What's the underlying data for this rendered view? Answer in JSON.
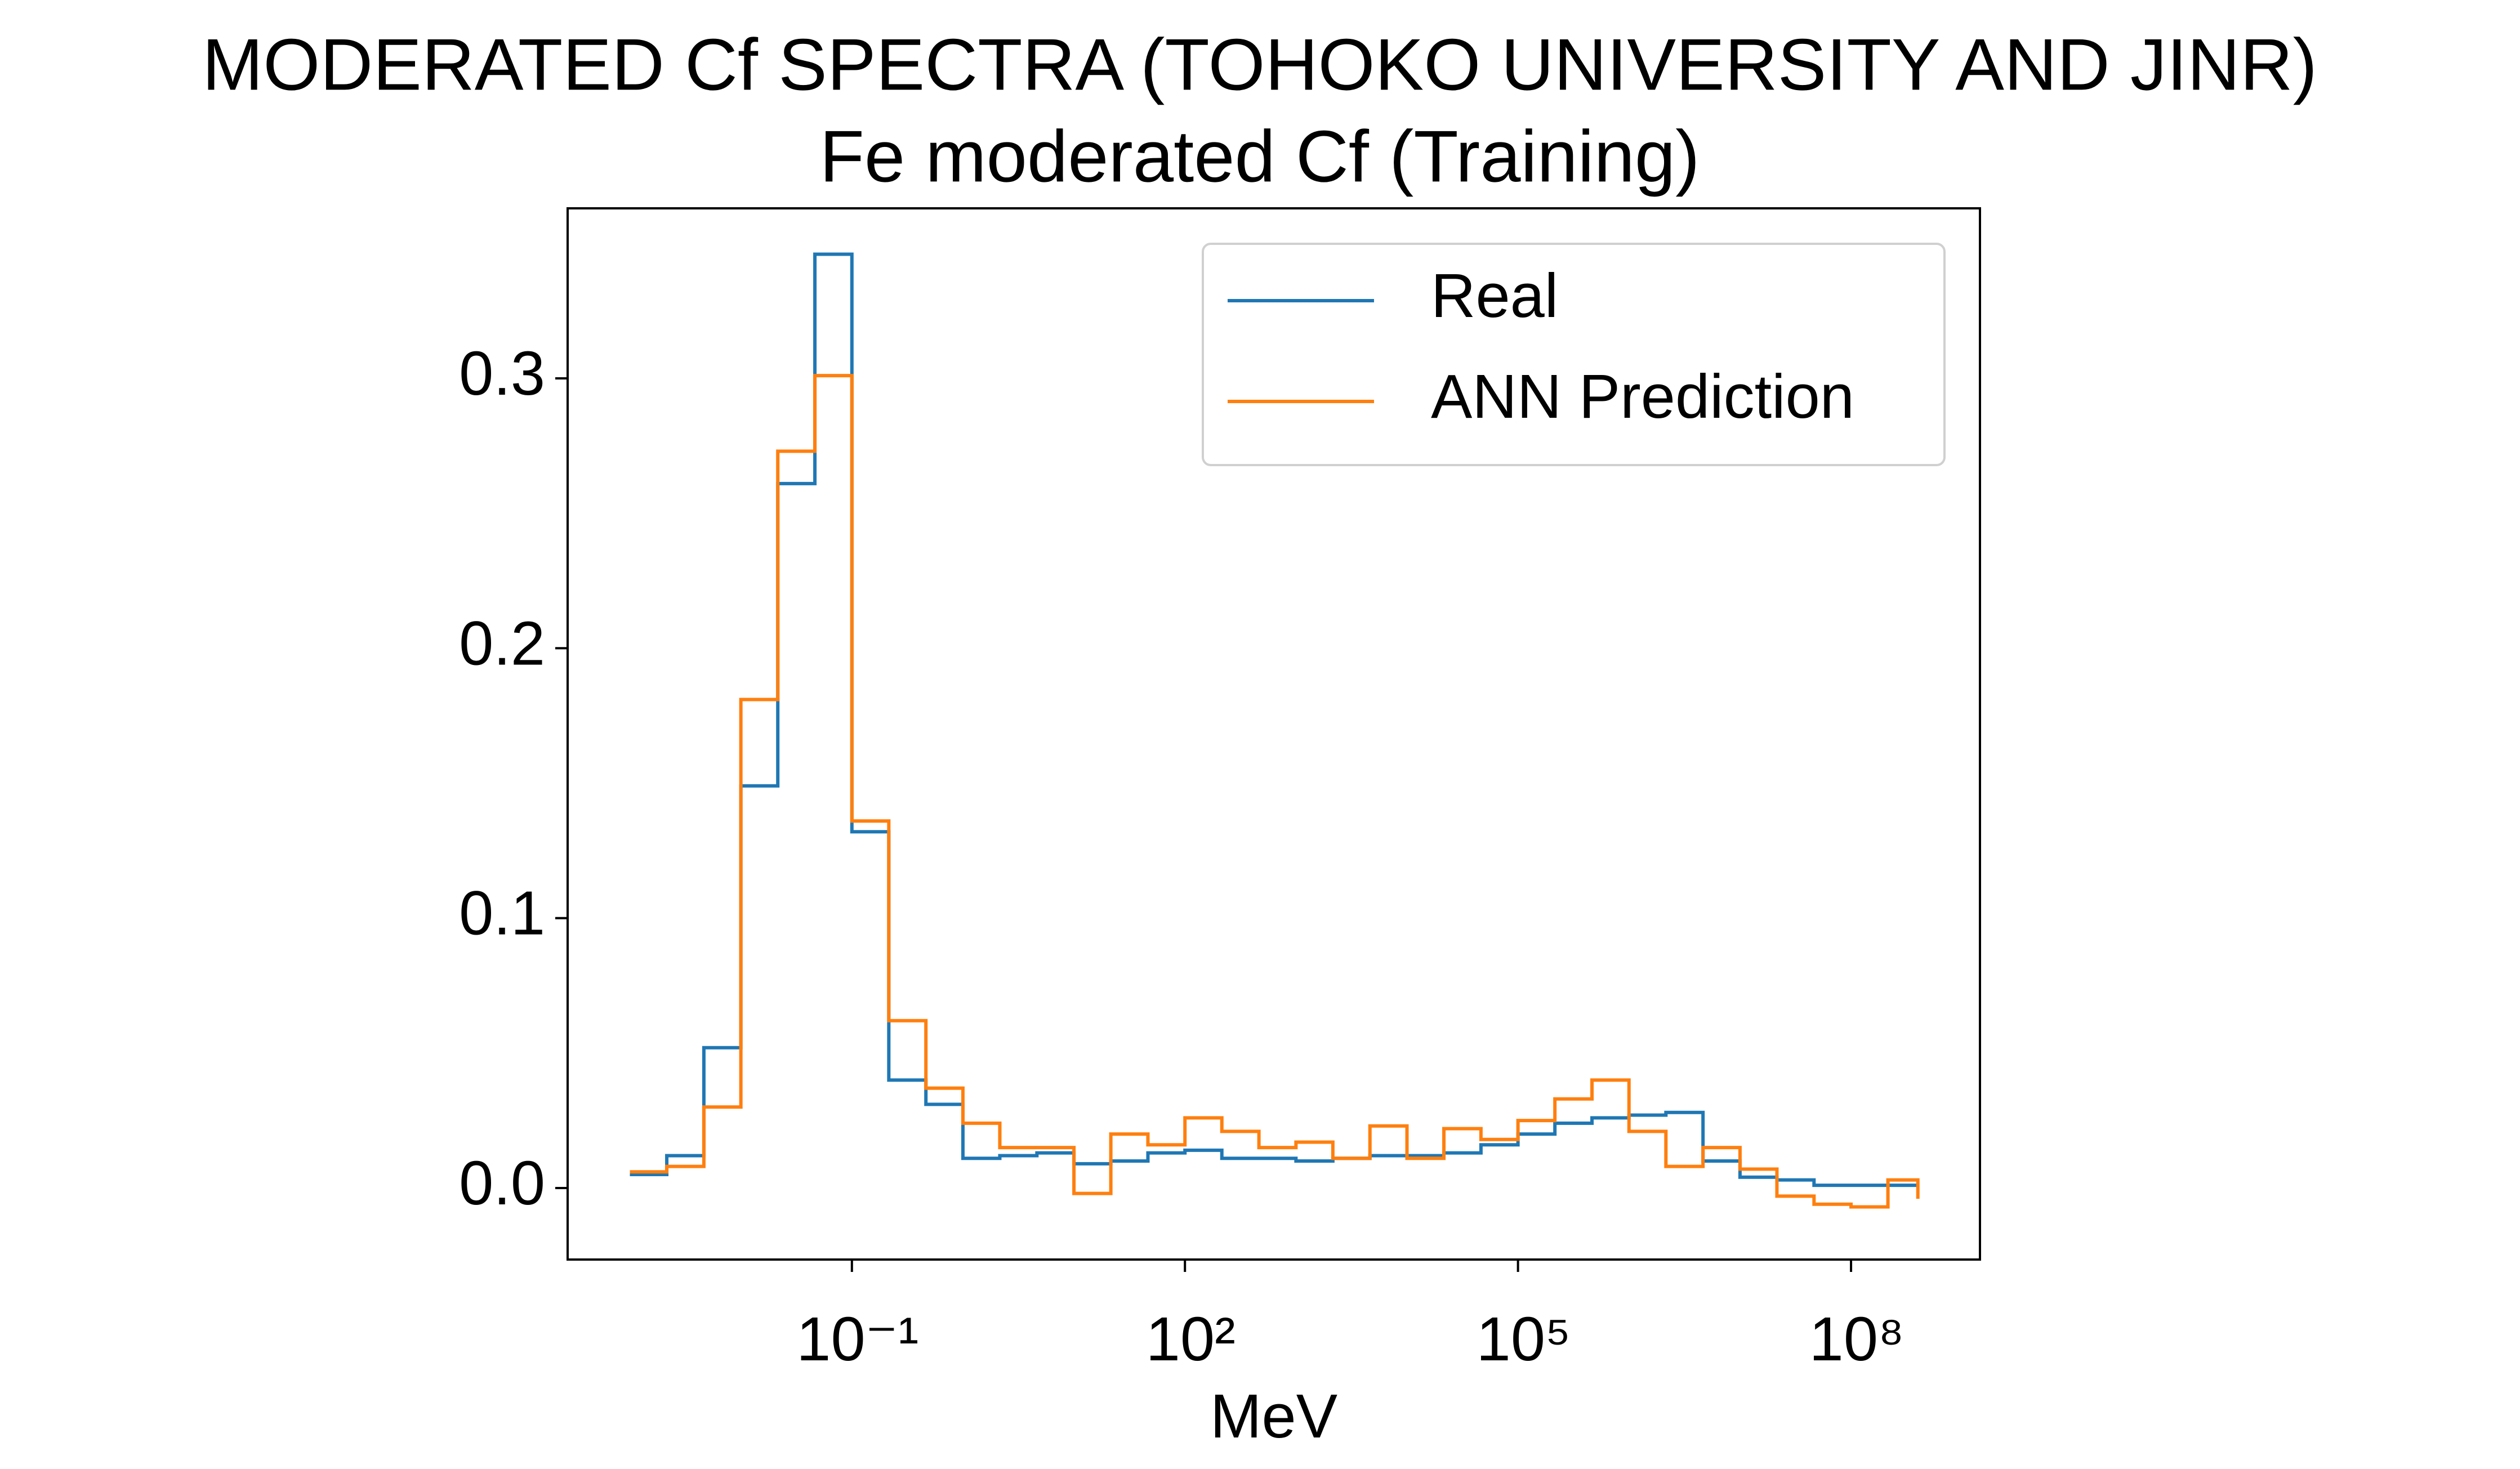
{
  "chart_data": {
    "type": "step",
    "title": "MODERATED Cf SPECTRA (TOHOKO UNIVERSITY AND JINR)",
    "subtitle": "Fe moderated Cf (Training)",
    "x_label": "MeV",
    "xscale": "log",
    "x": [
      0.001,
      0.00215,
      0.00464,
      0.01,
      0.0215,
      0.0464,
      0.1,
      0.215,
      0.464,
      1,
      2.15,
      4.64,
      10,
      21.5,
      46.4,
      100,
      215,
      464,
      1000,
      2150,
      4640,
      10000,
      21500,
      46400,
      100000,
      215000,
      464000,
      1000000,
      2150000,
      4640000,
      10000000,
      21500000,
      46400000,
      100000000,
      215000000,
      400000000
    ],
    "series": [
      {
        "name": "Real",
        "color": "#1f77b4",
        "values": [
          0.005,
          0.012,
          0.052,
          0.149,
          0.261,
          0.346,
          0.132,
          0.04,
          0.031,
          0.011,
          0.012,
          0.013,
          0.009,
          0.01,
          0.013,
          0.014,
          0.011,
          0.011,
          0.01,
          0.011,
          0.012,
          0.012,
          0.013,
          0.016,
          0.02,
          0.024,
          0.026,
          0.027,
          0.028,
          0.01,
          0.004,
          0.003,
          0.001,
          0.001,
          0.001,
          0.001
        ]
      },
      {
        "name": "ANN Prediction",
        "color": "#ff7f0e",
        "values": [
          0.006,
          0.008,
          0.03,
          0.181,
          0.273,
          0.301,
          0.136,
          0.062,
          0.037,
          0.024,
          0.015,
          0.015,
          -0.002,
          0.02,
          0.016,
          0.026,
          0.021,
          0.015,
          0.017,
          0.011,
          0.023,
          0.011,
          0.022,
          0.018,
          0.025,
          0.033,
          0.04,
          0.021,
          0.008,
          0.015,
          0.007,
          -0.003,
          -0.006,
          -0.007,
          0.003,
          -0.004
        ]
      }
    ],
    "xlim": [
      0.000275,
      1450000000
    ],
    "ylim": [
      -0.0265,
      0.363
    ],
    "xticks": [
      {
        "value": 0.1,
        "label": "10⁻¹"
      },
      {
        "value": 100,
        "label": "10²"
      },
      {
        "value": 100000,
        "label": "10⁵"
      },
      {
        "value": 100000000,
        "label": "10⁸"
      }
    ],
    "yticks": [
      0.0,
      0.1,
      0.2,
      0.3
    ],
    "ytick_labels": [
      "0.0",
      "0.1",
      "0.2",
      "0.3"
    ],
    "legend": "upper right"
  }
}
